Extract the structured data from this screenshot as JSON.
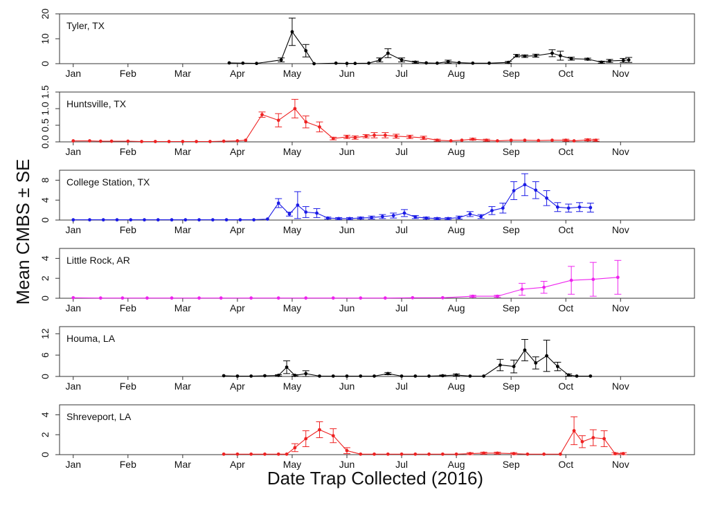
{
  "figure": {
    "ylabel": "Mean CMBS ± SE",
    "xlabel": "Date Trap Collected (2016)"
  },
  "chart_data": {
    "type": "line",
    "x_unit": "month (1.0 = Jan 1, 2016)",
    "x_ticks": [
      1,
      2,
      3,
      4,
      5,
      6,
      7,
      8,
      9,
      10,
      11
    ],
    "x_tick_labels": [
      "Jan",
      "Feb",
      "Mar",
      "Apr",
      "May",
      "Jun",
      "Jul",
      "Aug",
      "Sep",
      "Oct",
      "Nov"
    ],
    "xlim": [
      0.75,
      12.35
    ],
    "panels": [
      {
        "label": "Tyler, TX",
        "color": "#000000",
        "ylim": [
          0,
          20
        ],
        "yticks": [
          0,
          10,
          20
        ],
        "ytick_labels": [
          "0",
          "10",
          "20"
        ],
        "x": [
          3.85,
          4.1,
          4.35,
          4.8,
          5.0,
          5.25,
          5.4,
          5.8,
          6.0,
          6.15,
          6.4,
          6.6,
          6.75,
          7.0,
          7.25,
          7.45,
          7.65,
          7.85,
          8.05,
          8.3,
          8.6,
          8.95,
          9.1,
          9.25,
          9.45,
          9.75,
          9.9,
          10.1,
          10.4,
          10.65,
          10.8,
          11.05,
          11.15
        ],
        "y": [
          0.3,
          0.2,
          0.1,
          1.5,
          12.8,
          5.2,
          0,
          0.2,
          0.1,
          0.1,
          0.2,
          1.5,
          4.2,
          1.5,
          0.6,
          0.3,
          0.2,
          0.8,
          0.4,
          0.2,
          0.2,
          0.5,
          3.2,
          3.0,
          3.2,
          4.2,
          3.2,
          2.0,
          1.8,
          0.6,
          1.1,
          1.3,
          1.5
        ],
        "se": [
          0,
          0,
          0,
          0.8,
          5.5,
          2.5,
          0,
          0,
          0,
          0,
          0,
          0.8,
          1.8,
          0.8,
          0.4,
          0,
          0,
          0.6,
          0,
          0,
          0,
          0.4,
          0.5,
          0.5,
          0.6,
          1.4,
          1.8,
          0.6,
          0.4,
          0.4,
          0.6,
          0.8,
          1.0
        ]
      },
      {
        "label": "Huntsville, TX",
        "color": "#ee2222",
        "ylim": [
          0,
          1.5
        ],
        "yticks": [
          0,
          0.5,
          1.0,
          1.5
        ],
        "ytick_labels": [
          "0.0",
          "0.5",
          "1.0",
          "1.5"
        ],
        "x": [
          1.0,
          1.3,
          1.5,
          1.7,
          2.0,
          2.25,
          2.5,
          2.75,
          3.0,
          3.25,
          3.5,
          3.75,
          4.0,
          4.15,
          4.45,
          4.75,
          5.05,
          5.25,
          5.5,
          5.75,
          6.0,
          6.15,
          6.35,
          6.5,
          6.7,
          6.9,
          7.15,
          7.4,
          7.65,
          7.9,
          8.1,
          8.3,
          8.55,
          8.75,
          9.0,
          9.25,
          9.5,
          9.75,
          10.0,
          10.15,
          10.4,
          10.55
        ],
        "y": [
          0.03,
          0.03,
          0.02,
          0.02,
          0.02,
          0.01,
          0.01,
          0.01,
          0.01,
          0.01,
          0.01,
          0.02,
          0.03,
          0.05,
          0.82,
          0.65,
          1.0,
          0.6,
          0.45,
          0.1,
          0.15,
          0.13,
          0.17,
          0.2,
          0.2,
          0.17,
          0.15,
          0.12,
          0.05,
          0.03,
          0.05,
          0.08,
          0.05,
          0.03,
          0.05,
          0.05,
          0.04,
          0.05,
          0.05,
          0.03,
          0.06,
          0.05
        ],
        "se": [
          0,
          0,
          0,
          0,
          0,
          0,
          0,
          0,
          0,
          0,
          0,
          0,
          0,
          0,
          0.08,
          0.2,
          0.28,
          0.18,
          0.15,
          0.04,
          0.05,
          0.05,
          0.05,
          0.08,
          0.08,
          0.06,
          0.05,
          0.05,
          0.03,
          0,
          0,
          0.03,
          0.03,
          0,
          0,
          0,
          0,
          0,
          0.03,
          0,
          0.03,
          0.03
        ]
      },
      {
        "label": "College Station, TX",
        "color": "#1a1ae6",
        "ylim": [
          0,
          10
        ],
        "yticks": [
          0,
          4,
          8
        ],
        "ytick_labels": [
          "0",
          "4",
          "8"
        ],
        "x": [
          1.0,
          1.3,
          1.55,
          1.8,
          2.05,
          2.3,
          2.55,
          2.8,
          3.05,
          3.3,
          3.55,
          3.8,
          4.05,
          4.3,
          4.55,
          4.75,
          4.95,
          5.1,
          5.25,
          5.45,
          5.65,
          5.85,
          6.05,
          6.25,
          6.45,
          6.65,
          6.85,
          7.05,
          7.25,
          7.45,
          7.65,
          7.85,
          8.05,
          8.25,
          8.45,
          8.65,
          8.85,
          9.05,
          9.25,
          9.45,
          9.65,
          9.85,
          10.05,
          10.25,
          10.45
        ],
        "y": [
          0.05,
          0.05,
          0.05,
          0.05,
          0.05,
          0.05,
          0.05,
          0.05,
          0.05,
          0.05,
          0.05,
          0.05,
          0.05,
          0.05,
          0.2,
          3.4,
          1.2,
          3.0,
          1.6,
          1.4,
          0.4,
          0.3,
          0.3,
          0.4,
          0.5,
          0.7,
          0.9,
          1.4,
          0.6,
          0.4,
          0.3,
          0.3,
          0.5,
          1.2,
          0.7,
          1.9,
          2.4,
          5.9,
          7.1,
          6.0,
          4.4,
          2.6,
          2.4,
          2.6,
          2.5
        ],
        "se": [
          0,
          0,
          0,
          0,
          0,
          0,
          0,
          0,
          0,
          0,
          0,
          0,
          0,
          0,
          0,
          0.9,
          0.4,
          2.7,
          1.1,
          0.9,
          0.2,
          0.2,
          0.2,
          0.2,
          0.3,
          0.4,
          0.5,
          0.7,
          0.3,
          0.2,
          0.2,
          0.2,
          0.3,
          0.5,
          0.4,
          0.8,
          1.0,
          1.8,
          2.2,
          1.7,
          1.5,
          0.9,
          0.8,
          0.9,
          0.9
        ]
      },
      {
        "label": "Little Rock, AR",
        "color": "#ee22ee",
        "ylim": [
          0,
          5
        ],
        "yticks": [
          0,
          2,
          4
        ],
        "ytick_labels": [
          "0",
          "2",
          "4"
        ],
        "x": [
          1.0,
          1.5,
          1.9,
          2.35,
          2.8,
          3.3,
          3.7,
          4.25,
          4.75,
          5.25,
          5.75,
          6.25,
          6.7,
          7.2,
          7.75,
          8.3,
          8.75,
          9.2,
          9.6,
          10.1,
          10.5,
          10.95
        ],
        "y": [
          0.05,
          0.02,
          0.02,
          0.02,
          0.02,
          0.02,
          0.02,
          0.02,
          0.02,
          0.02,
          0.02,
          0.02,
          0.02,
          0.05,
          0.05,
          0.2,
          0.2,
          0.9,
          1.1,
          1.8,
          1.9,
          2.1
        ],
        "se": [
          0,
          0,
          0,
          0,
          0,
          0,
          0,
          0,
          0,
          0,
          0,
          0,
          0,
          0,
          0,
          0.1,
          0.1,
          0.6,
          0.6,
          1.4,
          1.7,
          1.7
        ]
      },
      {
        "label": "Houma, LA",
        "color": "#000000",
        "ylim": [
          0,
          14
        ],
        "yticks": [
          0,
          6,
          12
        ],
        "ytick_labels": [
          "0",
          "6",
          "12"
        ],
        "x": [
          3.75,
          4.0,
          4.25,
          4.5,
          4.75,
          4.9,
          5.05,
          5.25,
          5.5,
          5.75,
          6.0,
          6.25,
          6.5,
          6.75,
          7.0,
          7.25,
          7.5,
          7.75,
          8.0,
          8.25,
          8.5,
          8.8,
          9.05,
          9.25,
          9.45,
          9.65,
          9.85,
          10.05,
          10.2,
          10.45
        ],
        "y": [
          0.2,
          0.1,
          0.1,
          0.2,
          0.3,
          2.6,
          0.3,
          0.8,
          0.1,
          0.1,
          0.1,
          0.1,
          0.1,
          0.8,
          0.1,
          0.1,
          0.1,
          0.2,
          0.4,
          0.1,
          0.1,
          3.2,
          2.8,
          7.4,
          3.8,
          5.8,
          2.8,
          0.4,
          0.1,
          0.1
        ],
        "se": [
          0,
          0,
          0,
          0,
          0.2,
          1.8,
          0.2,
          0.8,
          0,
          0,
          0,
          0,
          0,
          0.3,
          0,
          0,
          0,
          0.2,
          0.3,
          0,
          0,
          1.6,
          1.8,
          3.0,
          1.7,
          4.4,
          1.2,
          0.3,
          0,
          0
        ]
      },
      {
        "label": "Shreveport, LA",
        "color": "#ee2222",
        "ylim": [
          0,
          5
        ],
        "yticks": [
          0,
          2,
          4
        ],
        "ytick_labels": [
          "0",
          "2",
          "4"
        ],
        "x": [
          3.75,
          4.0,
          4.25,
          4.5,
          4.75,
          4.9,
          5.05,
          5.25,
          5.5,
          5.75,
          6.0,
          6.25,
          6.5,
          6.75,
          7.0,
          7.25,
          7.5,
          7.75,
          8.0,
          8.25,
          8.5,
          8.75,
          9.05,
          9.3,
          9.6,
          9.9,
          10.15,
          10.3,
          10.5,
          10.7,
          10.9,
          11.05
        ],
        "y": [
          0.05,
          0.05,
          0.05,
          0.05,
          0.05,
          0.05,
          0.7,
          1.6,
          2.5,
          1.9,
          0.4,
          0.05,
          0.05,
          0.05,
          0.05,
          0.05,
          0.05,
          0.05,
          0.05,
          0.1,
          0.15,
          0.15,
          0.1,
          0.05,
          0.05,
          0.05,
          2.4,
          1.3,
          1.7,
          1.6,
          0.1,
          0.1
        ],
        "se": [
          0,
          0,
          0,
          0,
          0,
          0,
          0.4,
          0.8,
          0.8,
          0.7,
          0.3,
          0,
          0,
          0,
          0,
          0,
          0,
          0,
          0,
          0.1,
          0.1,
          0.1,
          0.1,
          0,
          0,
          0,
          1.4,
          0.6,
          0.8,
          0.8,
          0.1,
          0.1
        ]
      }
    ]
  }
}
